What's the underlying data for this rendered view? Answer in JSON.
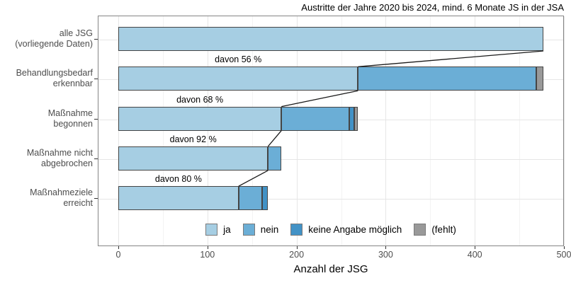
{
  "title": "Austritte der Jahre 2020 bis 2024, mind. 6 Monate JS in der JSA",
  "chart_data": {
    "type": "bar",
    "orientation": "horizontal",
    "stacked": true,
    "title": "Austritte der Jahre 2020 bis 2024, mind. 6 Monate JS in der JSA",
    "xlabel": "Anzahl der JSG",
    "xlim": [
      0,
      500
    ],
    "xticks": [
      0,
      100,
      200,
      300,
      400,
      500
    ],
    "xticks_minor": [
      50,
      150,
      250,
      350,
      450
    ],
    "grid": true,
    "legend_position": "bottom-inside",
    "categories": [
      [
        "alle JSG",
        "(vorliegende Daten)"
      ],
      [
        "Behandlungsbedarf",
        "erkennbar"
      ],
      [
        "Maßnahme",
        "begonnen"
      ],
      [
        "Maßnahme nicht",
        "abgebrochen"
      ],
      [
        "Maßnahmeziele",
        "erreicht"
      ]
    ],
    "series": [
      {
        "name": "ja",
        "color": "#a6cee3",
        "values": [
          477,
          269,
          183,
          168,
          135
        ]
      },
      {
        "name": "nein",
        "color": "#6baed6",
        "values": [
          0,
          200,
          76,
          15,
          26
        ]
      },
      {
        "name": "keine Angabe möglich",
        "color": "#4292c6",
        "values": [
          0,
          0,
          6,
          0,
          7
        ]
      },
      {
        "name": "(fehlt)",
        "color": "#999999",
        "values": [
          0,
          8,
          4,
          0,
          0
        ]
      }
    ],
    "row_totals": [
      477,
      477,
      269,
      183,
      168
    ],
    "annotations": [
      {
        "row": 1,
        "label": "davon 56 %",
        "percent": 56
      },
      {
        "row": 2,
        "label": "davon 68 %",
        "percent": 68
      },
      {
        "row": 3,
        "label": "davon 92 %",
        "percent": 92
      },
      {
        "row": 4,
        "label": "davon 80 %",
        "percent": 80
      }
    ],
    "connector_color": "#1a1a1a",
    "bar_border_color": "#454545"
  }
}
